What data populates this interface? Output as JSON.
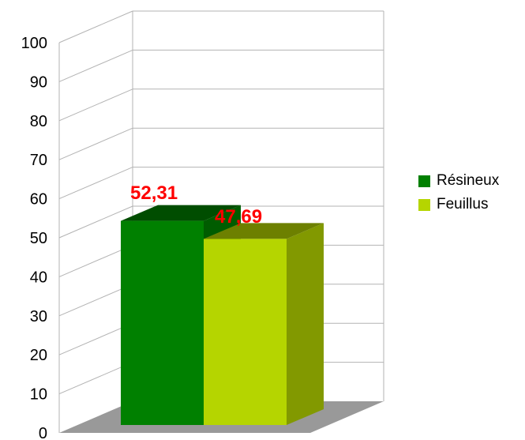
{
  "chart_data": {
    "type": "bar",
    "title": "",
    "xlabel": "",
    "ylabel": "",
    "ylim": [
      0,
      100
    ],
    "yticks": [
      0,
      10,
      20,
      30,
      40,
      50,
      60,
      70,
      80,
      90,
      100
    ],
    "grid": true,
    "three_d": true,
    "legend_position": "right",
    "series": [
      {
        "name": "Résineux",
        "value": 52.31,
        "label": "52,31",
        "color": "#008000"
      },
      {
        "name": "Feuillus",
        "value": 47.69,
        "label": "47,69",
        "color": "#b5d500"
      }
    ],
    "data_label_color": "#ff0000"
  }
}
